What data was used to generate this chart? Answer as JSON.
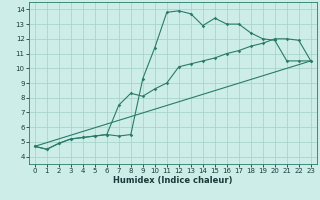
{
  "xlabel": "Humidex (Indice chaleur)",
  "xlim": [
    -0.5,
    23.5
  ],
  "ylim": [
    3.5,
    14.5
  ],
  "xticks": [
    0,
    1,
    2,
    3,
    4,
    5,
    6,
    7,
    8,
    9,
    10,
    11,
    12,
    13,
    14,
    15,
    16,
    17,
    18,
    19,
    20,
    21,
    22,
    23
  ],
  "yticks": [
    4,
    5,
    6,
    7,
    8,
    9,
    10,
    11,
    12,
    13,
    14
  ],
  "bg_color": "#cdeee8",
  "grid_color": "#a8d4cc",
  "line_color": "#2a7a6a",
  "line1_x": [
    0,
    1,
    2,
    3,
    4,
    5,
    6,
    7,
    8,
    9,
    10,
    11,
    12,
    13,
    14,
    15,
    16,
    17,
    18,
    19,
    20,
    21,
    22,
    23
  ],
  "line1_y": [
    4.7,
    4.5,
    4.9,
    5.2,
    5.3,
    5.4,
    5.5,
    5.4,
    5.5,
    9.3,
    11.4,
    13.8,
    13.9,
    13.7,
    12.9,
    13.4,
    13.0,
    13.0,
    12.4,
    12.0,
    11.9,
    10.5,
    10.5,
    10.5
  ],
  "line2_x": [
    0,
    1,
    2,
    3,
    4,
    5,
    6,
    7,
    8,
    9,
    10,
    11,
    12,
    13,
    14,
    15,
    16,
    17,
    18,
    19,
    20,
    21,
    22,
    23
  ],
  "line2_y": [
    4.7,
    4.5,
    4.9,
    5.2,
    5.3,
    5.4,
    5.5,
    7.5,
    8.3,
    8.1,
    8.6,
    9.0,
    10.1,
    10.3,
    10.5,
    10.7,
    11.0,
    11.2,
    11.5,
    11.7,
    12.0,
    12.0,
    11.9,
    10.5
  ],
  "line3_x": [
    0,
    23
  ],
  "line3_y": [
    4.7,
    10.5
  ]
}
